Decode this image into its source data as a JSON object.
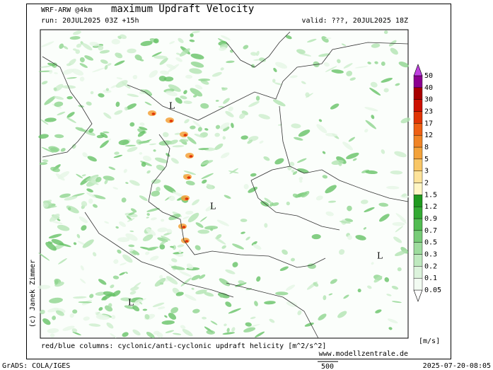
{
  "header": {
    "model": "WRF-ARW @4km",
    "title": "maximum Updraft Velocity",
    "run": "run: 20JUL2025 03Z +15h",
    "valid": "valid: ???, 20JUL2025 18Z"
  },
  "map": {
    "copyright": "(c) Janek Zimmer",
    "lows": [
      "L",
      "L",
      "L",
      "L"
    ]
  },
  "colorbar": {
    "unit": "[m/s]",
    "labels": [
      "0.05",
      "0.1",
      "0.2",
      "0.3",
      "0.5",
      "0.7",
      "0.9",
      "1.2",
      "1.5",
      "2",
      "3",
      "5",
      "8",
      "12",
      "17",
      "23",
      "30",
      "40",
      "50"
    ],
    "colors": [
      "#ffffff",
      "#f2fbf2",
      "#dcf3dc",
      "#bfe9bf",
      "#9edc9e",
      "#78cc78",
      "#52bc52",
      "#34aa34",
      "#1f9a1f",
      "#fff6c4",
      "#fde39a",
      "#f8c666",
      "#f3a23a",
      "#f08426",
      "#ee6014",
      "#e03404",
      "#cc1000",
      "#a80000",
      "#8c0090",
      "#c040e0"
    ]
  },
  "footer": {
    "helicity": "red/blue columns: cyclonic/anti-cyclonic updraft helicity [m^2/s^2]",
    "website": "www.modellzentrale.de",
    "software": "GrADS: COLA/IGES",
    "timestamp": "2025-07-20-08:05",
    "scale": "500"
  }
}
